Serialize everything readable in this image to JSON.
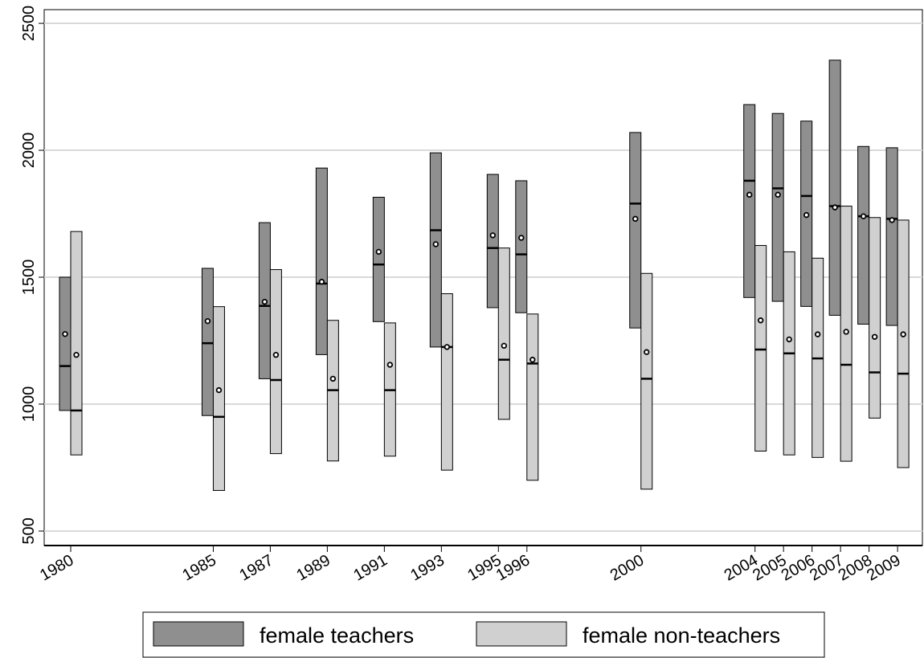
{
  "chart_data": {
    "type": "box",
    "x": [
      1980,
      1985,
      1987,
      1989,
      1991,
      1993,
      1995,
      1996,
      2000,
      2004,
      2005,
      2006,
      2007,
      2008,
      2009
    ],
    "series": [
      {
        "name": "female teachers",
        "color": "#8f8f8f",
        "low": [
          975,
          955,
          1100,
          1195,
          1325,
          1225,
          1380,
          1360,
          1300,
          1420,
          1405,
          1385,
          1350,
          1315,
          1310
        ],
        "high": [
          1500,
          1535,
          1715,
          1930,
          1815,
          1990,
          1905,
          1880,
          2070,
          2180,
          2145,
          2115,
          2355,
          2015,
          2010
        ],
        "median": [
          1150,
          1240,
          1387,
          1475,
          1550,
          1685,
          1615,
          1590,
          1790,
          1880,
          1850,
          1820,
          1780,
          1740,
          1730
        ],
        "mean": [
          1276,
          1327,
          1403,
          1482,
          1600,
          1630,
          1665,
          1655,
          1730,
          1825,
          1825,
          1745,
          1775,
          1740,
          1725
        ]
      },
      {
        "name": "female non-teachers",
        "color": "#d0d0d0",
        "low": [
          800,
          660,
          805,
          776,
          795,
          740,
          940,
          700,
          665,
          815,
          800,
          790,
          775,
          945,
          750
        ],
        "high": [
          1680,
          1384,
          1530,
          1330,
          1320,
          1435,
          1615,
          1355,
          1515,
          1625,
          1600,
          1575,
          1780,
          1735,
          1725
        ],
        "median": [
          975,
          950,
          1095,
          1055,
          1055,
          1225,
          1175,
          1160,
          1100,
          1215,
          1200,
          1180,
          1155,
          1125,
          1120
        ],
        "mean": [
          1194,
          1055,
          1194,
          1100,
          1155,
          1225,
          1230,
          1175,
          1205,
          1330,
          1255,
          1275,
          1285,
          1265,
          1275
        ]
      }
    ],
    "xlim": [
      1979.07,
      2009.87
    ],
    "ylim": [
      443,
      2554
    ],
    "yticks": [
      500,
      1000,
      1500,
      2000,
      2500
    ],
    "xticks": [
      1980,
      1985,
      1987,
      1989,
      1991,
      1993,
      1995,
      1996,
      2000,
      2004,
      2005,
      2006,
      2007,
      2008,
      2009
    ],
    "grid": true,
    "legend": "bottom"
  }
}
